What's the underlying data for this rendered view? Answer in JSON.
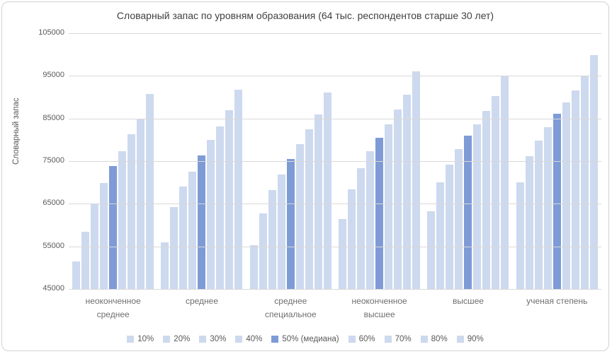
{
  "chart_data": {
    "type": "bar",
    "title": "Словарный запас по уровням образования (64 тыс. респондентов старше 30 лет)",
    "xlabel": "",
    "ylabel": "Словарный запас",
    "ylim": [
      45000,
      105000
    ],
    "y_ticks": [
      105000,
      95000,
      85000,
      75000,
      65000,
      55000,
      45000
    ],
    "grid": "horizontal",
    "legend_position": "bottom",
    "categories": [
      "неоконченное среднее",
      "среднее",
      "среднее специальное",
      "неоконченное высшее",
      "высшее",
      "ученая степень"
    ],
    "series": [
      {
        "name": "10%",
        "values": [
          51400,
          55900,
          55200,
          61400,
          63300,
          70000
        ]
      },
      {
        "name": "20%",
        "values": [
          58400,
          64200,
          62700,
          68400,
          70000,
          76200
        ]
      },
      {
        "name": "30%",
        "values": [
          65100,
          69000,
          68200,
          73300,
          74200,
          79800
        ]
      },
      {
        "name": "40%",
        "values": [
          69900,
          72500,
          71800,
          77300,
          77900,
          82900
        ]
      },
      {
        "name": "50% (медиана)",
        "values": [
          73900,
          76300,
          75500,
          80500,
          81000,
          86100
        ]
      },
      {
        "name": "60%",
        "values": [
          77300,
          79900,
          79000,
          83600,
          83700,
          88800
        ]
      },
      {
        "name": "70%",
        "values": [
          81300,
          83200,
          82500,
          87100,
          86800,
          91500
        ]
      },
      {
        "name": "80%",
        "values": [
          84900,
          87000,
          85900,
          90500,
          90300,
          95000
        ]
      },
      {
        "name": "90%",
        "values": [
          90800,
          91800,
          91100,
          96000,
          95000,
          99800
        ]
      }
    ],
    "median_series_index": 4,
    "colors": {
      "bar_light": "#cdd9ee",
      "bar_median": "#7e9bd6",
      "gridline": "#d9d9d9",
      "axis_text": "#595959",
      "category_text": "#6f6f6f",
      "title_text": "#404040"
    }
  }
}
